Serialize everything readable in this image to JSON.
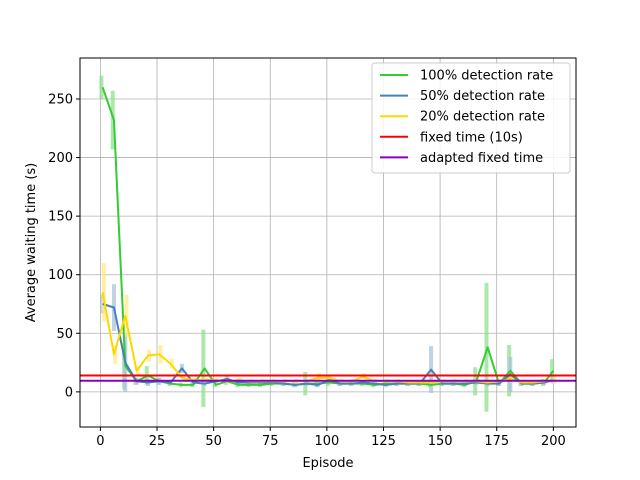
{
  "chart_data": {
    "type": "line",
    "title": "",
    "xlabel": "Episode",
    "ylabel": "Average waiting time (s)",
    "xlim": [
      -9,
      210
    ],
    "ylim": [
      -30,
      285
    ],
    "xticks": [
      0,
      25,
      50,
      75,
      100,
      125,
      150,
      175,
      200
    ],
    "yticks": [
      0,
      50,
      100,
      150,
      200,
      250
    ],
    "grid": true,
    "legend_position": "top-right",
    "x": [
      1,
      6,
      11,
      16,
      21,
      26,
      31,
      36,
      41,
      46,
      51,
      56,
      61,
      66,
      71,
      76,
      81,
      86,
      91,
      96,
      101,
      106,
      111,
      116,
      121,
      126,
      131,
      136,
      141,
      146,
      151,
      156,
      161,
      166,
      171,
      176,
      181,
      186,
      191,
      196,
      200
    ],
    "series": [
      {
        "name": "100% detection rate",
        "color": "#33cc33",
        "band_color": "#90e090",
        "values": [
          260,
          232,
          22,
          9,
          14,
          9,
          7,
          6,
          6,
          20,
          6,
          9,
          6,
          6,
          6,
          7,
          7,
          6,
          7,
          7,
          8,
          7,
          7,
          7,
          6,
          7,
          7,
          7,
          7,
          6,
          7,
          7,
          6,
          9,
          38,
          7,
          18,
          7,
          7,
          8,
          18
        ],
        "err": [
          10,
          25,
          20,
          3,
          8,
          3,
          2,
          2,
          2,
          33,
          2,
          3,
          2,
          2,
          2,
          2,
          2,
          2,
          10,
          3,
          3,
          2,
          2,
          2,
          2,
          2,
          2,
          2,
          2,
          2,
          2,
          2,
          2,
          12,
          55,
          2,
          22,
          2,
          2,
          3,
          10
        ]
      },
      {
        "name": "50% detection rate",
        "color": "#4682b4",
        "band_color": "#a9c3dd",
        "values": [
          75,
          72,
          25,
          9,
          8,
          9,
          8,
          20,
          8,
          7,
          9,
          11,
          8,
          8,
          8,
          8,
          7,
          6,
          7,
          6,
          10,
          7,
          7,
          8,
          7,
          6,
          7,
          7,
          7,
          19,
          7,
          7,
          7,
          8,
          7,
          7,
          15,
          7,
          7,
          8,
          10
        ],
        "err": [
          8,
          20,
          25,
          3,
          3,
          3,
          2,
          4,
          2,
          2,
          2,
          3,
          2,
          2,
          2,
          2,
          2,
          2,
          2,
          2,
          3,
          2,
          2,
          2,
          2,
          2,
          2,
          2,
          2,
          20,
          2,
          2,
          2,
          2,
          2,
          2,
          15,
          2,
          2,
          2,
          3
        ]
      },
      {
        "name": "20% detection rate",
        "color": "#ffd700",
        "band_color": "#ffe98a",
        "values": [
          85,
          32,
          65,
          18,
          31,
          32,
          24,
          12,
          10,
          10,
          10,
          9,
          10,
          9,
          9,
          9,
          9,
          9,
          9,
          12,
          12,
          9,
          9,
          13,
          9,
          9,
          9,
          8,
          8,
          8,
          9,
          9,
          9,
          9,
          8,
          9,
          11,
          8,
          8,
          9,
          10
        ],
        "err": [
          25,
          8,
          18,
          4,
          5,
          8,
          4,
          3,
          2,
          2,
          2,
          2,
          2,
          2,
          2,
          2,
          2,
          2,
          2,
          4,
          3,
          2,
          2,
          3,
          2,
          2,
          2,
          2,
          2,
          2,
          2,
          2,
          2,
          2,
          2,
          2,
          3,
          2,
          2,
          2,
          3
        ]
      },
      {
        "name": "fixed time (10s)",
        "color": "#ff0000",
        "constant": 14
      },
      {
        "name": "adapted fixed time",
        "color": "#8b00c0",
        "constant": 9.5
      }
    ]
  }
}
